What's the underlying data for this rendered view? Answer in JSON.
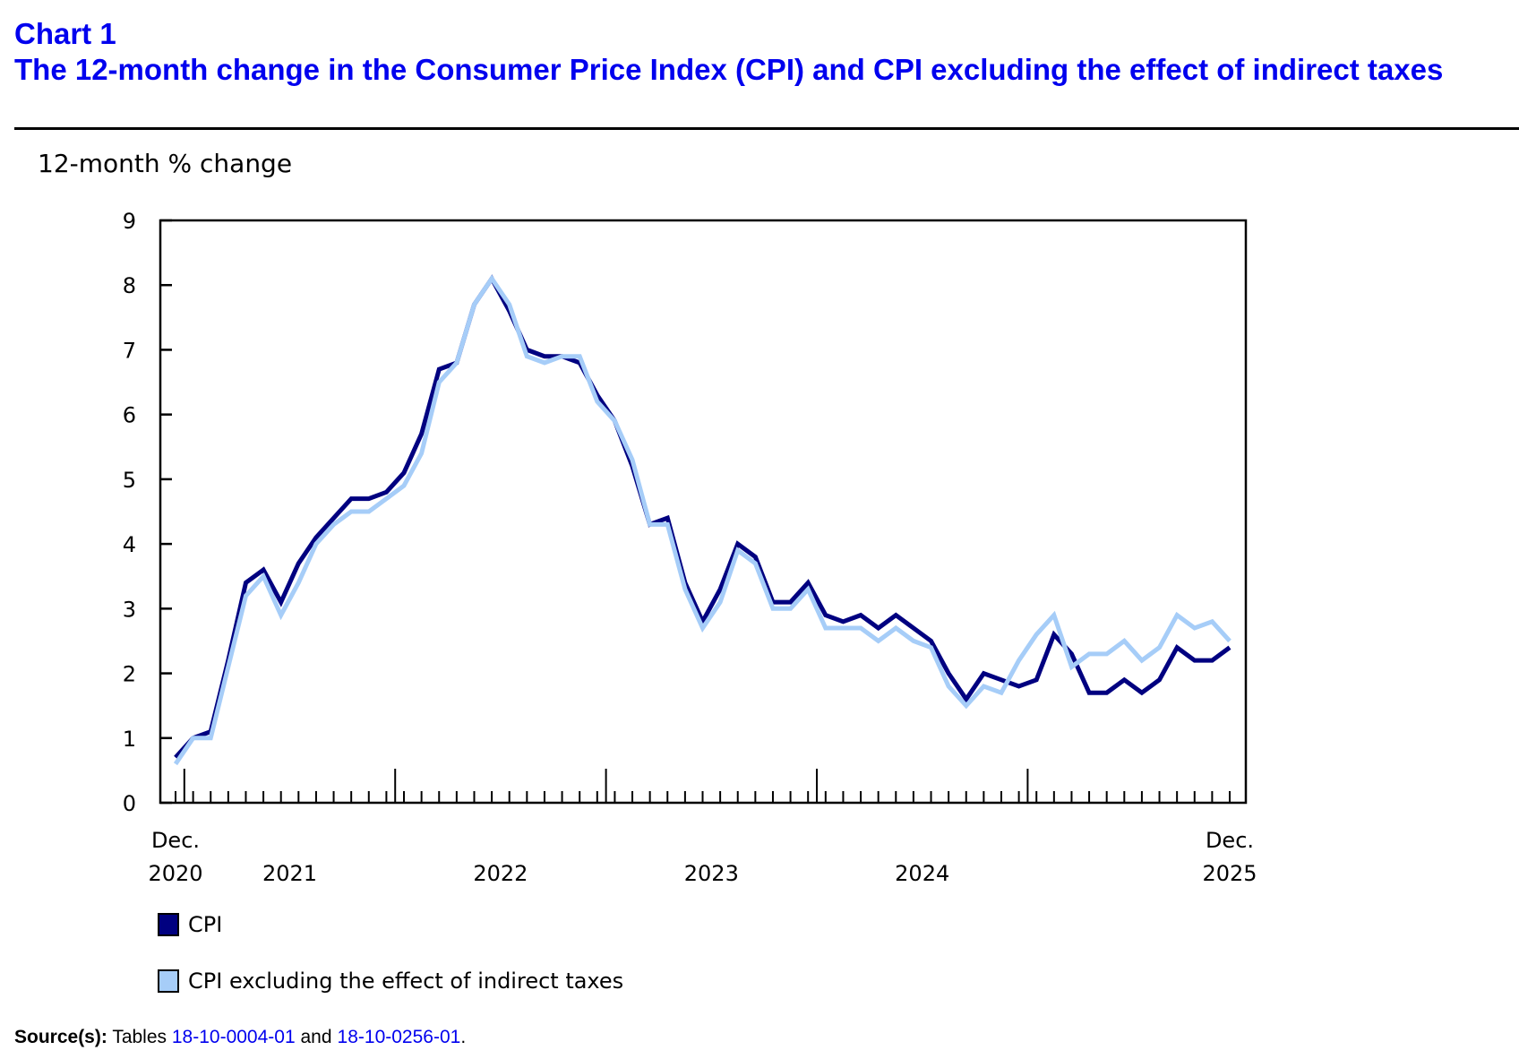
{
  "header": {
    "chart_number": "Chart 1",
    "title": "The 12-month change in the Consumer Price Index (CPI) and CPI excluding the effect of indirect taxes"
  },
  "colors": {
    "title": "#0000ee",
    "cpi": "#000080",
    "cpi_excl": "#a6cdf8",
    "link": "#0000ee"
  },
  "source": {
    "label": "Source(s):",
    "text_before": "Tables",
    "link1": "18-10-0004-01",
    "text_between": "and",
    "link2": "18-10-0256-01",
    "text_after": "."
  },
  "chart_data": {
    "type": "line",
    "title": "The 12-month change in the Consumer Price Index (CPI) and CPI excluding the effect of indirect taxes",
    "xlabel": "",
    "ylabel": "12-month % change",
    "ylim": [
      0,
      9
    ],
    "yticks": [
      0,
      1,
      2,
      3,
      4,
      5,
      6,
      7,
      8,
      9
    ],
    "grid": false,
    "legend_position": "bottom-left",
    "x_start": "Dec. 2020",
    "x_end": "Dec. 2025",
    "x_tick_labels": [
      {
        "month_index": 0,
        "line1": "Dec.",
        "line2": "2020"
      },
      {
        "month_index": 6.5,
        "line1": "",
        "line2": "2021"
      },
      {
        "month_index": 18.5,
        "line1": "",
        "line2": "2022"
      },
      {
        "month_index": 30.5,
        "line1": "",
        "line2": "2023"
      },
      {
        "month_index": 42.5,
        "line1": "",
        "line2": "2024"
      },
      {
        "month_index": 60,
        "line1": "Dec.",
        "line2": "2025"
      }
    ],
    "year_boundaries": [
      1,
      13,
      25,
      37,
      49
    ],
    "series": [
      {
        "name": "CPI",
        "color": "#000080",
        "values": [
          0.7,
          1.0,
          1.1,
          2.2,
          3.4,
          3.6,
          3.1,
          3.7,
          4.1,
          4.4,
          4.7,
          4.7,
          4.8,
          5.1,
          5.7,
          6.7,
          6.8,
          7.7,
          8.1,
          7.6,
          7.0,
          6.9,
          6.9,
          6.8,
          6.3,
          5.9,
          5.2,
          4.3,
          4.4,
          3.4,
          2.8,
          3.3,
          4.0,
          3.8,
          3.1,
          3.1,
          3.4,
          2.9,
          2.8,
          2.9,
          2.7,
          2.9,
          2.7,
          2.5,
          2.0,
          1.6,
          2.0,
          1.9,
          1.8,
          1.9,
          2.6,
          2.3,
          1.7,
          1.7,
          1.9,
          1.7,
          1.9,
          2.4,
          2.2,
          2.2,
          2.4
        ]
      },
      {
        "name": "CPI excluding the effect of indirect taxes",
        "color": "#a6cdf8",
        "values": [
          0.6,
          1.0,
          1.0,
          2.1,
          3.2,
          3.5,
          2.9,
          3.4,
          4.0,
          4.3,
          4.5,
          4.5,
          4.7,
          4.9,
          5.4,
          6.5,
          6.8,
          7.7,
          8.1,
          7.7,
          6.9,
          6.8,
          6.9,
          6.9,
          6.2,
          5.9,
          5.3,
          4.3,
          4.3,
          3.3,
          2.7,
          3.1,
          3.9,
          3.7,
          3.0,
          3.0,
          3.3,
          2.7,
          2.7,
          2.7,
          2.5,
          2.7,
          2.5,
          2.4,
          1.8,
          1.5,
          1.8,
          1.7,
          2.2,
          2.6,
          2.9,
          2.1,
          2.3,
          2.3,
          2.5,
          2.2,
          2.4,
          2.9,
          2.7,
          2.8,
          2.5
        ]
      }
    ]
  }
}
